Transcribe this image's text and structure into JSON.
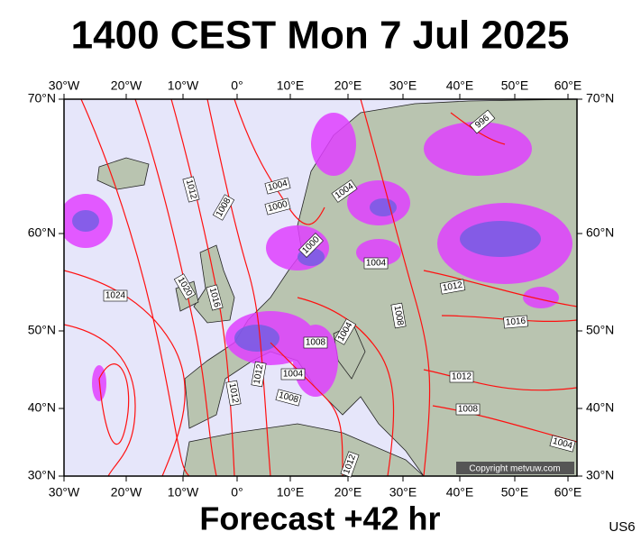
{
  "header": {
    "title": "1400 CEST Mon 7 Jul 2025"
  },
  "map": {
    "longitude_labels": [
      "30°W",
      "20°W",
      "10°W",
      "0°",
      "10°E",
      "20°E",
      "30°E",
      "40°E",
      "50°E",
      "60°E"
    ],
    "latitude_labels": [
      "70°N",
      "60°N",
      "50°N",
      "40°N",
      "30°N"
    ],
    "isobar_labels": [
      "996",
      "1012",
      "1008",
      "1004",
      "1000",
      "1004",
      "1000",
      "1004",
      "1012",
      "1016",
      "1024",
      "1020",
      "1016",
      "1008",
      "1004",
      "1008",
      "1012",
      "1004",
      "1012",
      "1008",
      "1012",
      "1008",
      "1004",
      "1012"
    ],
    "copyright": "Copyright metvuw.com"
  },
  "footer": {
    "forecast": "Forecast +42 hr",
    "model": "US6"
  }
}
